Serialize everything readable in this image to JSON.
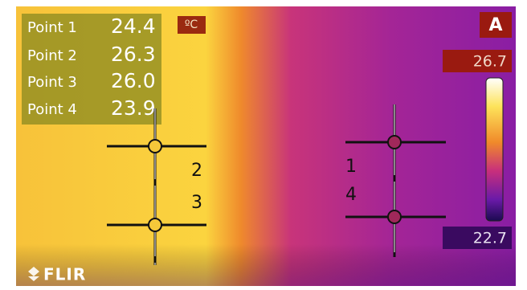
{
  "readings": [
    {
      "label": "Point 1",
      "value": "24.4"
    },
    {
      "label": "Point 2",
      "value": "26.3"
    },
    {
      "label": "Point 3",
      "value": "26.0"
    },
    {
      "label": "Point 4",
      "value": "23.9"
    }
  ],
  "unit": "ºC",
  "mode": "A",
  "scale": {
    "max": "26.7",
    "min": "22.7"
  },
  "markers": [
    "1",
    "2",
    "3",
    "4"
  ],
  "logo": "FLIR"
}
